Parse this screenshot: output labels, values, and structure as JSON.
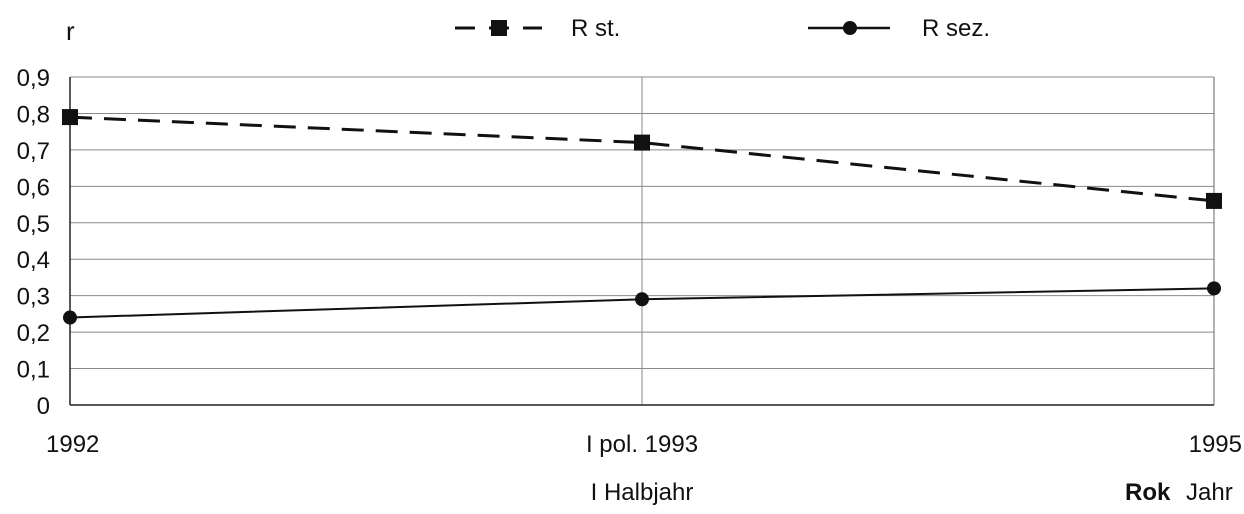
{
  "chart_data": {
    "type": "line",
    "ylabel": "r",
    "ylim": [
      0,
      0.9
    ],
    "y_ticks": [
      "0",
      "0,1",
      "0,2",
      "0,3",
      "0,4",
      "0,5",
      "0,6",
      "0,7",
      "0,8",
      "0,9"
    ],
    "categories": [
      "1992",
      "I pol. 1993",
      "1995"
    ],
    "xlabel_sub": "I Halbjahr",
    "xlabel_bold": "Rok",
    "xlabel_unit": "Jahr",
    "grid": true,
    "legend_position": "top",
    "series": [
      {
        "name": "R st.",
        "values": [
          0.79,
          0.72,
          0.56
        ],
        "line_style": "dashed",
        "marker": "square",
        "color": "#111111"
      },
      {
        "name": "R sez.",
        "values": [
          0.24,
          0.29,
          0.32
        ],
        "line_style": "solid",
        "marker": "circle",
        "color": "#111111"
      }
    ]
  }
}
